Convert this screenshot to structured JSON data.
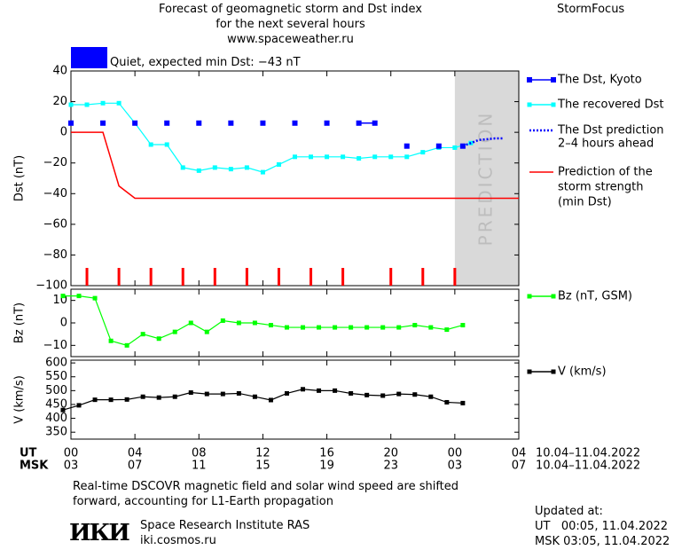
{
  "header": {
    "title_line1": "Forecast of geomagnetic storm and Dst index",
    "title_line2": "for the next several hours",
    "url": "www.spaceweather.ru",
    "brand": "StormFocus",
    "status_text": "Quiet, expected min Dst: −43 nT",
    "status_color": "#0000ff"
  },
  "chart_data": [
    {
      "type": "line",
      "ylabel": "Dst (nT)",
      "ylim": [
        -100,
        40
      ],
      "yticks": [
        "40",
        "20",
        "0",
        "−20",
        "−40",
        "−60",
        "−80",
        "−100"
      ],
      "ytick_values": [
        40,
        20,
        0,
        -20,
        -40,
        -60,
        -80,
        -100
      ],
      "prediction_band": [
        24,
        28
      ],
      "prediction_label": "PREDICTION",
      "series": [
        {
          "name": "The Dst, Kyoto",
          "color": "#0000ff",
          "x": [
            0,
            2,
            4,
            6,
            8,
            10,
            12,
            14,
            16,
            18,
            19,
            21,
            23,
            24.5
          ],
          "y": [
            6,
            6,
            6,
            6,
            6,
            6,
            6,
            6,
            6,
            6,
            6,
            -9,
            -9,
            -9
          ]
        },
        {
          "name": "The recovered Dst",
          "color": "#00ffff",
          "x": [
            0,
            1,
            2,
            3,
            4,
            5,
            6,
            7,
            8,
            9,
            10,
            11,
            12,
            13,
            14,
            15,
            16,
            17,
            18,
            19,
            20,
            21,
            22,
            23,
            24,
            25
          ],
          "y": [
            18,
            18,
            19,
            19,
            6,
            -8,
            -8,
            -23,
            -25,
            -23,
            -24,
            -23,
            -26,
            -21,
            -16,
            -16,
            -16,
            -16,
            -17,
            -16,
            -16,
            -16,
            -13,
            -10,
            -10,
            -7
          ]
        },
        {
          "name": "The Dst prediction 2–4 hours ahead",
          "color": "#0000ff",
          "x": [
            24.5,
            25,
            25.5,
            26.5,
            27
          ],
          "y": [
            -9,
            -7,
            -5,
            -4,
            -4
          ]
        },
        {
          "name": "Prediction of the storm strength (min Dst)",
          "color": "#ff0000",
          "x": [
            0,
            2,
            3,
            4,
            28
          ],
          "y": [
            0,
            0,
            -35,
            -43,
            -43
          ]
        }
      ],
      "legend": [
        {
          "label": "The Dst, Kyoto"
        },
        {
          "label": "The recovered Dst"
        },
        {
          "label": "The Dst prediction",
          "label2": "2–4 hours ahead"
        },
        {
          "label": "Prediction of the",
          "label2": "storm strength",
          "label3": "(min Dst)"
        }
      ],
      "red_markers_x": [
        1,
        3,
        5,
        7,
        9,
        11,
        13,
        15,
        17,
        20,
        22,
        24
      ]
    },
    {
      "type": "line",
      "ylabel": "Bz (nT)",
      "ylim": [
        -15,
        15
      ],
      "yticks": [
        "10",
        "0",
        "−10"
      ],
      "ytick_values": [
        10,
        0,
        -10
      ],
      "series": [
        {
          "name": "Bz (nT, GSM)",
          "color": "#00ff00",
          "x": [
            -0.5,
            0.5,
            1.5,
            2.5,
            3.5,
            4.5,
            5.5,
            6.5,
            7.5,
            8.5,
            9.5,
            10.5,
            11.5,
            12.5,
            13.5,
            14.5,
            15.5,
            16.5,
            17.5,
            18.5,
            19.5,
            20.5,
            21.5,
            22.5,
            23.5,
            24.5
          ],
          "y": [
            12,
            12,
            11,
            -8,
            -10,
            -5,
            -7,
            -4,
            0,
            -4,
            1,
            0,
            0,
            -1,
            -2,
            -2,
            -2,
            -2,
            -2,
            -2,
            -2,
            -2,
            -1,
            -2,
            -3,
            -1
          ]
        }
      ],
      "legend": [
        {
          "label": "Bz (nT, GSM)"
        }
      ]
    },
    {
      "type": "line",
      "ylabel": "V (km/s)",
      "ylim": [
        325,
        610
      ],
      "yticks": [
        "600",
        "550",
        "500",
        "450",
        "400",
        "350"
      ],
      "ytick_values": [
        600,
        550,
        500,
        450,
        400,
        350
      ],
      "series": [
        {
          "name": "V (km/s)",
          "color": "#000000",
          "x": [
            -0.5,
            0.5,
            1.5,
            2.5,
            3.5,
            4.5,
            5.5,
            6.5,
            7.5,
            8.5,
            9.5,
            10.5,
            11.5,
            12.5,
            13.5,
            14.5,
            15.5,
            16.5,
            17.5,
            18.5,
            19.5,
            20.5,
            21.5,
            22.5,
            23.5,
            24.5
          ],
          "y": [
            430,
            447,
            467,
            467,
            468,
            478,
            475,
            478,
            493,
            488,
            488,
            490,
            478,
            466,
            490,
            505,
            500,
            500,
            490,
            484,
            482,
            488,
            486,
            478,
            458,
            455
          ]
        }
      ],
      "legend": [
        {
          "label": "V (km/s)"
        }
      ]
    }
  ],
  "xaxis": {
    "ut_label": "UT",
    "msk_label": "MSK",
    "ut_ticks": [
      "00",
      "04",
      "08",
      "12",
      "16",
      "20",
      "00",
      "04"
    ],
    "msk_ticks": [
      "03",
      "07",
      "11",
      "15",
      "19",
      "23",
      "03",
      "07"
    ],
    "tick_hours": [
      0,
      4,
      8,
      12,
      16,
      20,
      24,
      28
    ],
    "ut_range": "10.04–11.04.2022",
    "msk_range": "10.04–11.04.2022"
  },
  "footer": {
    "note_line1": "Real-time DSCOVR magnetic field and solar wind speed are shifted",
    "note_line2": "forward, accounting for L1-Earth propagation",
    "logo_text": "ИКИ",
    "institute": "Space Research Institute RAS",
    "website": "iki.cosmos.ru",
    "updated_label": "Updated at:",
    "updated_ut": "UT   00:05, 11.04.2022",
    "updated_msk": "MSK 03:05, 11.04.2022"
  }
}
